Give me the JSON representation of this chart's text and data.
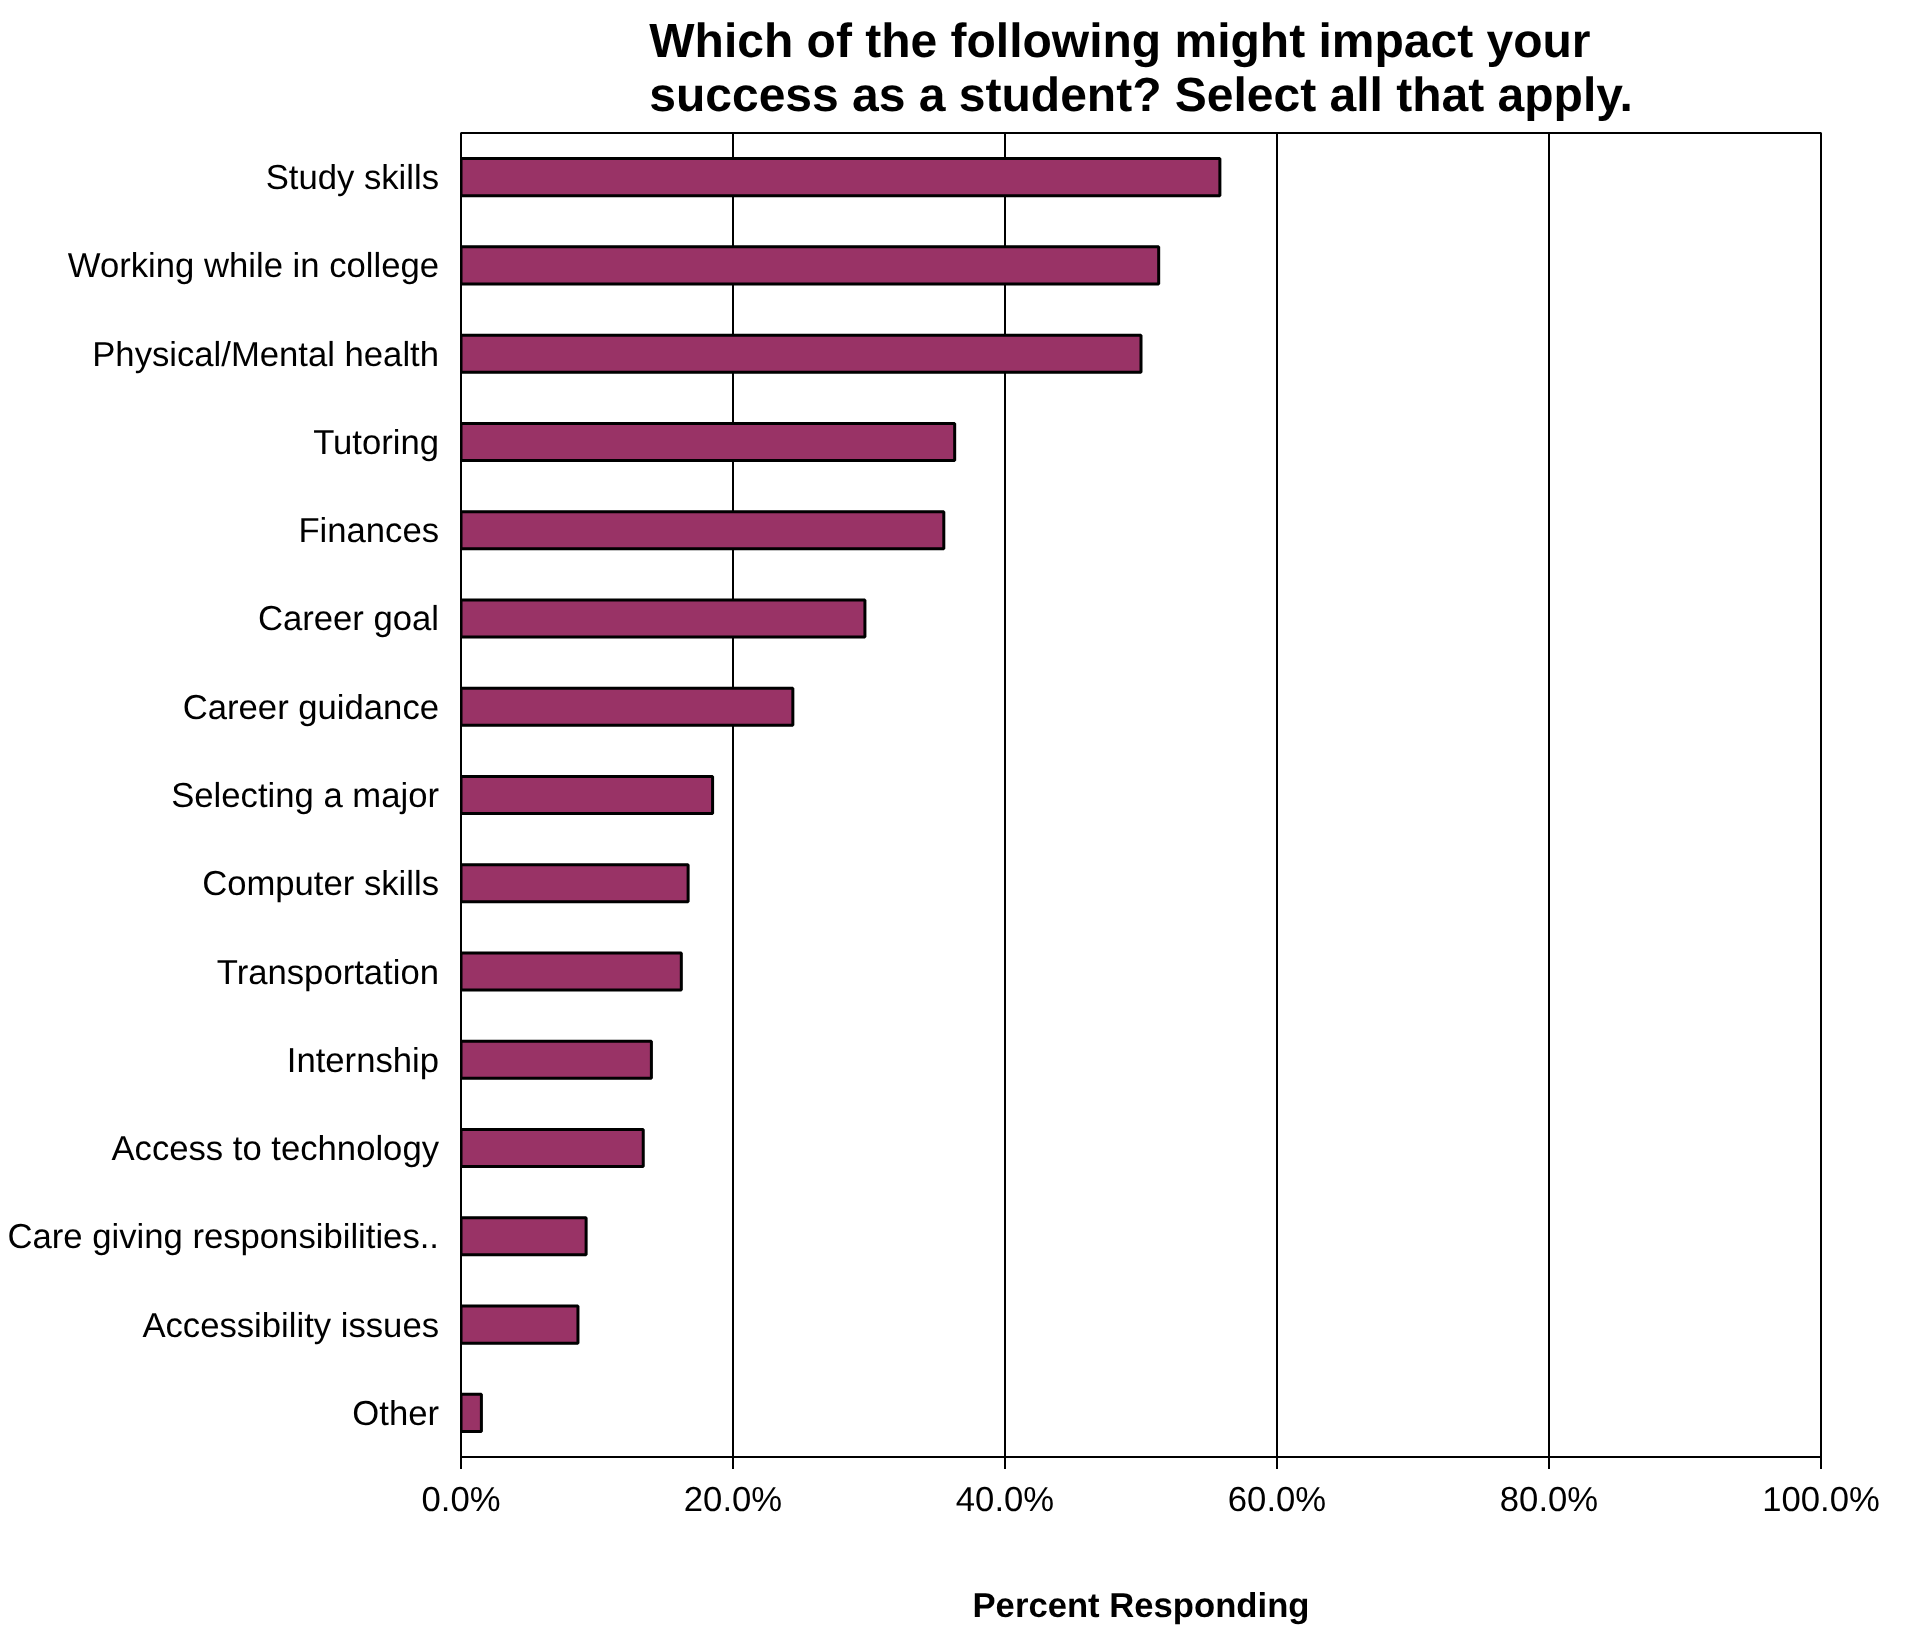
{
  "chart_data": {
    "type": "bar",
    "orientation": "horizontal",
    "title": "Which of the following might impact your success as a student? Select all that apply.",
    "xlabel": "Percent Responding",
    "categories": [
      "Study skills",
      "Working while in college",
      "Physical/Mental health",
      "Tutoring",
      "Finances",
      "Career goal",
      "Career guidance",
      "Selecting a major",
      "Computer skills",
      "Transportation",
      "Internship",
      "Access to technology",
      "Care giving responsibilities..",
      "Accessibility issues",
      "Other"
    ],
    "values": [
      55.8,
      51.3,
      50.0,
      36.3,
      35.5,
      29.7,
      24.4,
      18.5,
      16.7,
      16.2,
      14.0,
      13.4,
      9.2,
      8.6,
      1.5
    ],
    "color": "#993366",
    "xlim": [
      0,
      100
    ],
    "xticks": [
      {
        "value": 0,
        "label": "0.0%"
      },
      {
        "value": 20,
        "label": "20.0%"
      },
      {
        "value": 40,
        "label": "40.0%"
      },
      {
        "value": 60,
        "label": "60.0%"
      },
      {
        "value": 80,
        "label": "80.0%"
      },
      {
        "value": 100,
        "label": "100.0%"
      }
    ],
    "grid": "x"
  }
}
